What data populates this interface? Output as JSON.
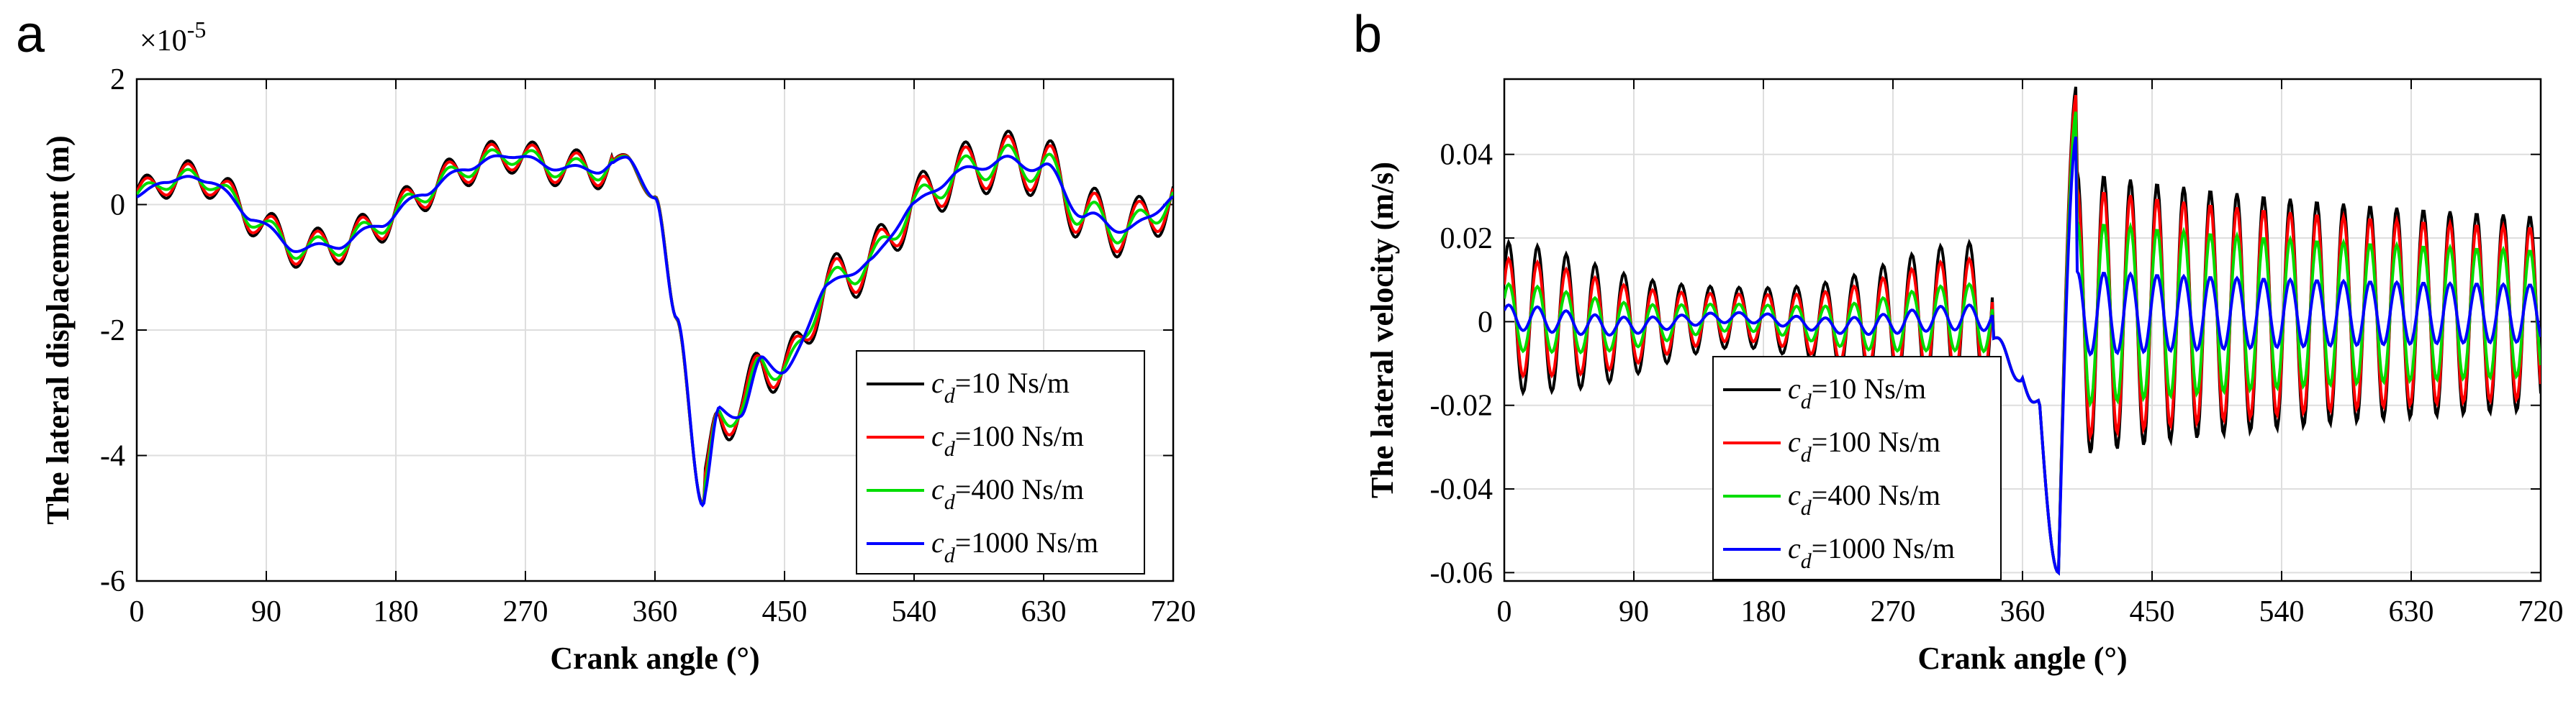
{
  "chart_data": [
    {
      "type": "line",
      "panel_label": "a",
      "xlabel": "Crank angle (°)",
      "ylabel": "The lateral displacement (m)",
      "y_exponent_label": "×10",
      "y_exponent_power": "-5",
      "xlim": [
        0,
        720
      ],
      "ylim": [
        -6,
        2
      ],
      "xticks": [
        "0",
        "90",
        "180",
        "270",
        "360",
        "450",
        "540",
        "630",
        "720"
      ],
      "yticks": [
        "2",
        "0",
        "-2",
        "-4",
        "-6"
      ],
      "ytick_values": [
        2,
        0,
        -2,
        -4,
        -6
      ],
      "grid": true,
      "legend_position": "bottom-right",
      "series": [
        {
          "name": "c_d=10 Ns/m",
          "legend_sub": "d",
          "legend_rest": "=10 Ns/m",
          "color": "#000000",
          "osc_amp": 0.3
        },
        {
          "name": "c_d=100 Ns/m",
          "legend_sub": "d",
          "legend_rest": "=100 Ns/m",
          "color": "#ff0000",
          "osc_amp": 0.25
        },
        {
          "name": "c_d=400 Ns/m",
          "legend_sub": "d",
          "legend_rest": "=400 Ns/m",
          "color": "#00dd00",
          "osc_amp": 0.16
        },
        {
          "name": "c_d=1000 Ns/m",
          "legend_sub": "d",
          "legend_rest": "=1000 Ns/m",
          "color": "#0000ff",
          "osc_amp": 0.05
        }
      ],
      "base_curve": {
        "x": [
          0,
          20,
          50,
          80,
          110,
          140,
          170,
          200,
          230,
          260,
          290,
          320,
          340,
          360,
          375,
          393,
          405,
          420,
          435,
          450,
          480,
          510,
          540,
          570,
          600,
          630,
          660,
          690,
          720
        ],
        "y": [
          0.1,
          0.4,
          0.4,
          -0.2,
          -0.7,
          -0.65,
          -0.3,
          0.2,
          0.6,
          0.8,
          0.6,
          0.55,
          0.75,
          0.1,
          -1.8,
          -4.8,
          -3.2,
          -3.4,
          -2.4,
          -2.7,
          -1.3,
          -0.9,
          0.0,
          0.5,
          0.7,
          0.6,
          -0.2,
          -0.4,
          0.1
        ]
      }
    },
    {
      "type": "line",
      "panel_label": "b",
      "xlabel": "Crank angle (°)",
      "ylabel": "The lateral velocity (m/s)",
      "xlim": [
        0,
        720
      ],
      "ylim": [
        -0.062,
        0.058
      ],
      "xticks": [
        "0",
        "90",
        "180",
        "270",
        "360",
        "450",
        "540",
        "630",
        "720"
      ],
      "yticks": [
        "0.04",
        "0.02",
        "0",
        "-0.02",
        "-0.04",
        "-0.06"
      ],
      "ytick_values": [
        0.04,
        0.02,
        0,
        -0.02,
        -0.04,
        -0.06
      ],
      "grid": true,
      "legend_position": "bottom-left",
      "series": [
        {
          "name": "c_d=10 Ns/m",
          "legend_sub": "d",
          "legend_rest": "=10 Ns/m",
          "color": "#000000",
          "amp_early": 0.018,
          "amp_late": 0.034
        },
        {
          "name": "c_d=100 Ns/m",
          "legend_sub": "d",
          "legend_rest": "=100 Ns/m",
          "color": "#ff0000",
          "amp_early": 0.014,
          "amp_late": 0.03
        },
        {
          "name": "c_d=400 Ns/m",
          "legend_sub": "d",
          "legend_rest": "=400 Ns/m",
          "color": "#00dd00",
          "amp_early": 0.008,
          "amp_late": 0.022
        },
        {
          "name": "c_d=1000 Ns/m",
          "legend_sub": "d",
          "legend_rest": "=1000 Ns/m",
          "color": "#0000ff",
          "amp_early": 0.003,
          "amp_late": 0.01
        }
      ]
    }
  ]
}
